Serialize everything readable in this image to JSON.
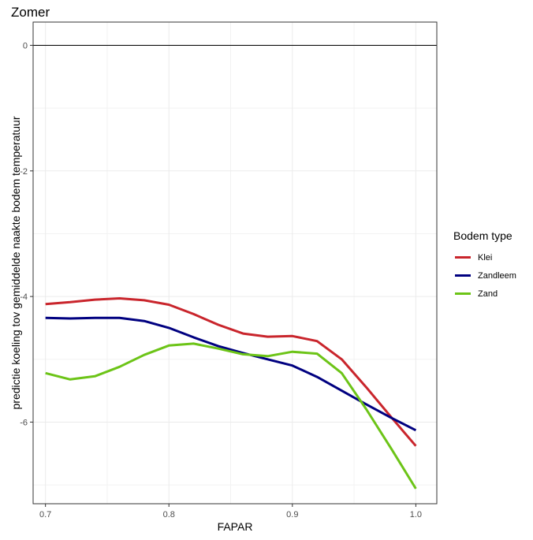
{
  "chart_data": {
    "type": "line",
    "title": "Zomer",
    "xlabel": "FAPAR",
    "ylabel": "predictie koeling tov gemiddelde naakte bodem temperatuur",
    "xlim": [
      0.69,
      1.017
    ],
    "ylim": [
      -7.3,
      0.37
    ],
    "x_ticks": [
      0.7,
      0.8,
      0.9,
      1.0
    ],
    "x_tick_labels": [
      "0.7",
      "0.8",
      "0.9",
      "1.0"
    ],
    "y_ticks": [
      0,
      -2,
      -4,
      -6
    ],
    "y_tick_labels": [
      "0",
      "-2",
      "-4",
      "-6"
    ],
    "hline": 0,
    "grid": true,
    "legend": {
      "title": "Bodem type",
      "position": "right"
    },
    "series": [
      {
        "name": "Klei",
        "color": "#c9252c",
        "x": [
          0.7,
          0.72,
          0.74,
          0.76,
          0.78,
          0.8,
          0.82,
          0.84,
          0.86,
          0.88,
          0.9,
          0.92,
          0.94,
          0.96,
          0.98,
          1.0
        ],
        "y": [
          -4.12,
          -4.09,
          -4.05,
          -4.03,
          -4.06,
          -4.13,
          -4.28,
          -4.45,
          -4.59,
          -4.64,
          -4.63,
          -4.71,
          -5.0,
          -5.45,
          -5.92,
          -6.38
        ]
      },
      {
        "name": "Zandleem",
        "color": "#000080",
        "x": [
          0.7,
          0.72,
          0.74,
          0.76,
          0.78,
          0.8,
          0.82,
          0.84,
          0.86,
          0.88,
          0.9,
          0.92,
          0.94,
          0.96,
          0.98,
          1.0
        ],
        "y": [
          -4.34,
          -4.35,
          -4.34,
          -4.34,
          -4.39,
          -4.5,
          -4.65,
          -4.79,
          -4.9,
          -5.0,
          -5.1,
          -5.28,
          -5.5,
          -5.72,
          -5.93,
          -6.13
        ]
      },
      {
        "name": "Zand",
        "color": "#6cc417",
        "x": [
          0.7,
          0.72,
          0.74,
          0.76,
          0.78,
          0.8,
          0.82,
          0.84,
          0.86,
          0.88,
          0.9,
          0.92,
          0.94,
          0.96,
          0.98,
          1.0
        ],
        "y": [
          -5.22,
          -5.32,
          -5.27,
          -5.12,
          -4.93,
          -4.78,
          -4.75,
          -4.83,
          -4.92,
          -4.95,
          -4.88,
          -4.91,
          -5.22,
          -5.8,
          -6.42,
          -7.06
        ]
      }
    ]
  }
}
